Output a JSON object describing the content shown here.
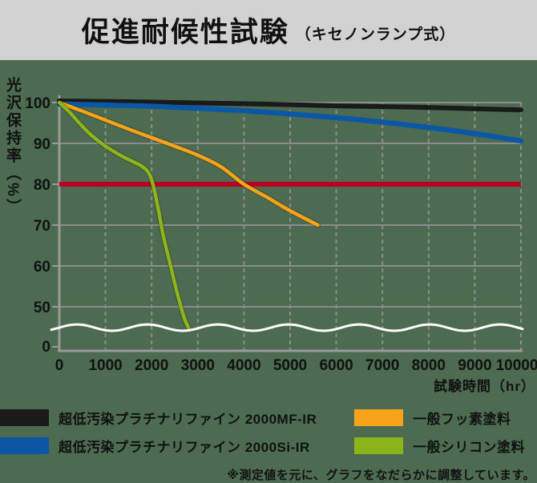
{
  "title": {
    "main": "促進耐候性試験",
    "sub": "（キセノンランプ式）"
  },
  "note": "※測定値を元に、グラフをなだらかに調整しています。",
  "colors": {
    "background": "#4c6b51",
    "title_bar": "#d2d2d2",
    "text": "#111111",
    "grid": "#8c8c8c",
    "axis": "#9a9a9a",
    "reference_line": "#b80023",
    "axis_break_wave": "#ffffff"
  },
  "chart_data": {
    "type": "line",
    "title": "促進耐候性試験（キセノンランプ式）",
    "xlabel": "試験時間（hr）",
    "ylabel": "光沢保持率（%）",
    "xlim": [
      0,
      10000
    ],
    "ylim_shown": [
      0,
      100
    ],
    "grid": true,
    "legend_position": "bottom",
    "x_ticks": [
      0,
      1000,
      2000,
      3000,
      4000,
      5000,
      6000,
      7000,
      8000,
      9000,
      10000
    ],
    "y_ticks": [
      100,
      90,
      80,
      70,
      60,
      50,
      0
    ],
    "y_gridlines": [
      100,
      90,
      70,
      60,
      50
    ],
    "y_axis_break": {
      "between": [
        50,
        0
      ],
      "shown_as": "white-wavy-line",
      "approx_value_at_break": 45
    },
    "reference_line": {
      "y": 80,
      "color": "#b80023"
    },
    "series": [
      {
        "name": "超低汚染プラチナリファイン 2000MF-IR",
        "color": "#1a1a1a",
        "width": 6,
        "outline": false,
        "points": [
          [
            0,
            100.4
          ],
          [
            1500,
            100.2
          ],
          [
            3000,
            99.9
          ],
          [
            4500,
            99.6
          ],
          [
            6000,
            99.2
          ],
          [
            7500,
            98.9
          ],
          [
            9000,
            98.5
          ],
          [
            10000,
            98.2
          ]
        ]
      },
      {
        "name": "超低汚染プラチナリファイン 2000Si-IR",
        "color": "#0b57a5",
        "width": 6.5,
        "outline": false,
        "points": [
          [
            0,
            99.6
          ],
          [
            1000,
            99.4
          ],
          [
            2000,
            99.1
          ],
          [
            3000,
            98.6
          ],
          [
            4000,
            98.0
          ],
          [
            5000,
            97.2
          ],
          [
            6000,
            96.3
          ],
          [
            7000,
            95.2
          ],
          [
            8000,
            93.9
          ],
          [
            9000,
            92.4
          ],
          [
            10000,
            90.6
          ]
        ]
      },
      {
        "name": "一般フッ素塗料",
        "color": "#f7a41a",
        "width": 4.5,
        "outline": true,
        "points": [
          [
            0,
            100
          ],
          [
            500,
            97.9
          ],
          [
            1000,
            95.7
          ],
          [
            1500,
            93.5
          ],
          [
            2000,
            91.4
          ],
          [
            2500,
            89.3
          ],
          [
            3000,
            87.1
          ],
          [
            3500,
            84.3
          ],
          [
            4000,
            80.0
          ],
          [
            4500,
            76.8
          ],
          [
            5000,
            73.5
          ],
          [
            5600,
            70.0
          ]
        ]
      },
      {
        "name": "一般シリコン塗料",
        "color": "#8eb41c",
        "width": 4.5,
        "outline": true,
        "points": [
          [
            0,
            100
          ],
          [
            200,
            97.9
          ],
          [
            400,
            95.4
          ],
          [
            600,
            93.0
          ],
          [
            800,
            91.0
          ],
          [
            1000,
            89.3
          ],
          [
            1200,
            87.9
          ],
          [
            1400,
            86.6
          ],
          [
            1600,
            85.5
          ],
          [
            1800,
            84.3
          ],
          [
            1950,
            82.5
          ],
          [
            2050,
            79.0
          ],
          [
            2150,
            73.5
          ],
          [
            2250,
            67.5
          ],
          [
            2400,
            60.5
          ],
          [
            2550,
            53.5
          ],
          [
            2700,
            47.5
          ],
          [
            2800,
            44.8
          ]
        ]
      }
    ]
  }
}
